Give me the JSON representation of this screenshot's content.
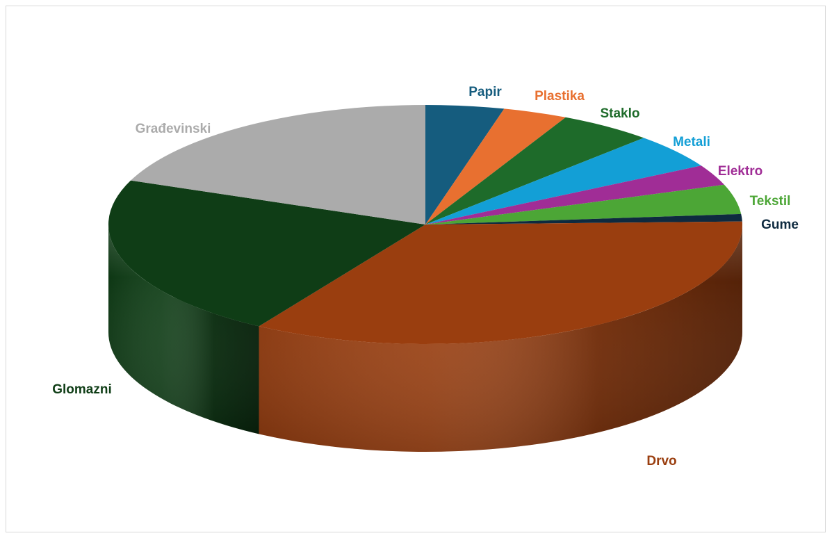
{
  "chart_data": {
    "type": "pie",
    "title": "",
    "style": "3d",
    "legend": "none",
    "slices": [
      {
        "label": "Papir",
        "value": 4.0,
        "color": "#155c7e"
      },
      {
        "label": "Plastika",
        "value": 3.3,
        "color": "#e87030"
      },
      {
        "label": "Staklo",
        "value": 4.8,
        "color": "#1e6b2a"
      },
      {
        "label": "Metali",
        "value": 4.7,
        "color": "#139fd6"
      },
      {
        "label": "Elektro",
        "value": 2.8,
        "color": "#a02d96"
      },
      {
        "label": "Tekstil",
        "value": 4.0,
        "color": "#4ca636"
      },
      {
        "label": "Gume",
        "value": 1.0,
        "color": "#0e2a3f"
      },
      {
        "label": "Drvo",
        "value": 34.2,
        "color": "#9a3e0f"
      },
      {
        "label": "Glomazni",
        "value": 22.2,
        "color": "#0f3d16"
      },
      {
        "label": "Građevinski",
        "value": 19.0,
        "color": "#ababab"
      }
    ]
  }
}
